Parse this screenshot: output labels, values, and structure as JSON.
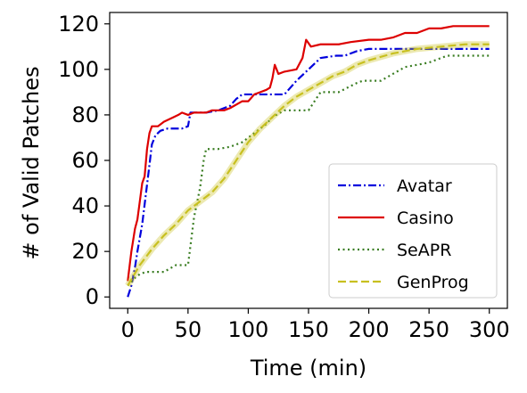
{
  "chart_data": {
    "type": "line",
    "xlabel": "Time (min)",
    "ylabel": "# of Valid Patches",
    "xlim": [
      -15,
      315
    ],
    "ylim": [
      -5,
      125
    ],
    "xticks": [
      0,
      50,
      100,
      150,
      200,
      250,
      300
    ],
    "yticks": [
      0,
      20,
      40,
      60,
      80,
      100,
      120
    ],
    "legend_position": "lower-right",
    "grid": false,
    "series": [
      {
        "name": "Avatar",
        "color": "#0000dd",
        "dash": "dashdot",
        "points": [
          [
            0,
            0
          ],
          [
            3,
            5
          ],
          [
            6,
            13
          ],
          [
            8,
            20
          ],
          [
            12,
            32
          ],
          [
            15,
            45
          ],
          [
            18,
            58
          ],
          [
            20,
            67
          ],
          [
            23,
            71
          ],
          [
            27,
            73
          ],
          [
            33,
            74
          ],
          [
            45,
            74
          ],
          [
            50,
            75
          ],
          [
            52,
            81
          ],
          [
            65,
            81
          ],
          [
            75,
            82
          ],
          [
            85,
            84
          ],
          [
            90,
            87
          ],
          [
            95,
            89
          ],
          [
            130,
            89
          ],
          [
            140,
            95
          ],
          [
            160,
            105
          ],
          [
            173,
            106
          ],
          [
            180,
            106
          ],
          [
            190,
            108
          ],
          [
            200,
            109
          ],
          [
            250,
            109
          ],
          [
            300,
            109
          ]
        ]
      },
      {
        "name": "Casino",
        "color": "#dd0000",
        "dash": "solid",
        "points": [
          [
            0,
            7
          ],
          [
            3,
            20
          ],
          [
            6,
            30
          ],
          [
            8,
            34
          ],
          [
            10,
            42
          ],
          [
            12,
            50
          ],
          [
            14,
            53
          ],
          [
            16,
            65
          ],
          [
            18,
            72
          ],
          [
            20,
            75
          ],
          [
            25,
            75
          ],
          [
            30,
            77
          ],
          [
            38,
            79
          ],
          [
            42,
            80
          ],
          [
            45,
            81
          ],
          [
            50,
            80
          ],
          [
            55,
            81
          ],
          [
            65,
            81
          ],
          [
            70,
            82
          ],
          [
            80,
            82
          ],
          [
            85,
            83
          ],
          [
            95,
            86
          ],
          [
            100,
            86
          ],
          [
            105,
            89
          ],
          [
            110,
            90
          ],
          [
            115,
            91
          ],
          [
            118,
            92
          ],
          [
            120,
            96
          ],
          [
            122,
            102
          ],
          [
            125,
            98
          ],
          [
            130,
            99
          ],
          [
            140,
            100
          ],
          [
            145,
            105
          ],
          [
            148,
            113
          ],
          [
            152,
            110
          ],
          [
            160,
            111
          ],
          [
            175,
            111
          ],
          [
            185,
            112
          ],
          [
            200,
            113
          ],
          [
            210,
            113
          ],
          [
            220,
            114
          ],
          [
            230,
            116
          ],
          [
            240,
            116
          ],
          [
            250,
            118
          ],
          [
            260,
            118
          ],
          [
            270,
            119
          ],
          [
            300,
            119
          ]
        ]
      },
      {
        "name": "SeAPR",
        "color": "#3a7d22",
        "dash": "dotted",
        "points": [
          [
            0,
            5
          ],
          [
            5,
            8
          ],
          [
            10,
            10
          ],
          [
            15,
            11
          ],
          [
            20,
            11
          ],
          [
            30,
            11
          ],
          [
            40,
            14
          ],
          [
            50,
            14
          ],
          [
            55,
            35
          ],
          [
            60,
            48
          ],
          [
            63,
            60
          ],
          [
            65,
            65
          ],
          [
            75,
            65
          ],
          [
            85,
            66
          ],
          [
            95,
            68
          ],
          [
            100,
            70
          ],
          [
            110,
            74
          ],
          [
            115,
            76
          ],
          [
            120,
            79
          ],
          [
            130,
            82
          ],
          [
            140,
            82
          ],
          [
            150,
            82
          ],
          [
            155,
            86
          ],
          [
            160,
            90
          ],
          [
            175,
            90
          ],
          [
            190,
            94
          ],
          [
            195,
            95
          ],
          [
            210,
            95
          ],
          [
            220,
            98
          ],
          [
            230,
            101
          ],
          [
            250,
            103
          ],
          [
            265,
            106
          ],
          [
            300,
            106
          ]
        ]
      },
      {
        "name": "GenProg",
        "color": "#c8c020",
        "dash": "dashed",
        "points": [
          [
            0,
            5
          ],
          [
            10,
            14
          ],
          [
            20,
            21
          ],
          [
            30,
            27
          ],
          [
            40,
            32
          ],
          [
            50,
            38
          ],
          [
            60,
            42
          ],
          [
            70,
            46
          ],
          [
            80,
            52
          ],
          [
            90,
            60
          ],
          [
            100,
            68
          ],
          [
            110,
            74
          ],
          [
            120,
            79
          ],
          [
            130,
            84
          ],
          [
            140,
            88
          ],
          [
            150,
            91
          ],
          [
            160,
            94
          ],
          [
            170,
            97
          ],
          [
            180,
            99
          ],
          [
            190,
            102
          ],
          [
            200,
            104
          ],
          [
            220,
            107
          ],
          [
            240,
            109
          ],
          [
            260,
            110
          ],
          [
            280,
            111
          ],
          [
            300,
            111
          ]
        ]
      }
    ]
  }
}
